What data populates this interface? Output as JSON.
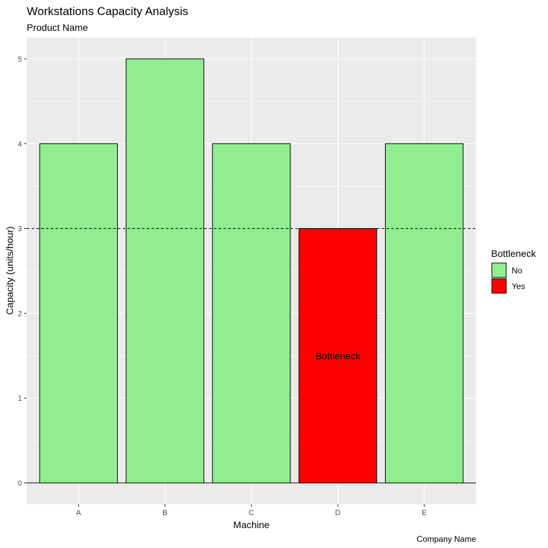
{
  "chart_data": {
    "type": "bar",
    "title": "Workstations Capacity Analysis",
    "subtitle": "Product Name",
    "caption": "Company Name",
    "xlabel": "Machine",
    "ylabel": "Capacity (units/hour)",
    "categories": [
      "A",
      "B",
      "C",
      "D",
      "E"
    ],
    "values": [
      4,
      5,
      4,
      3,
      4
    ],
    "bottleneck": [
      "No",
      "No",
      "No",
      "Yes",
      "No"
    ],
    "ylim": [
      -0.25,
      5.25
    ],
    "yticks": [
      0,
      1,
      2,
      3,
      4,
      5
    ],
    "reference_line": {
      "y": 3,
      "style": "dashed"
    },
    "annotations": [
      {
        "x": "D",
        "y": 1.5,
        "text": "Bottleneck"
      }
    ],
    "legend": {
      "title": "Bottleneck",
      "placement": "right",
      "entries": [
        {
          "label": "No",
          "color": "#90EE90"
        },
        {
          "label": "Yes",
          "color": "#FF0000"
        }
      ]
    },
    "grid": true,
    "colors": {
      "No": "#90EE90",
      "Yes": "#FF0000",
      "panel": "#EBEBEB",
      "grid": "#FFFFFF"
    }
  }
}
